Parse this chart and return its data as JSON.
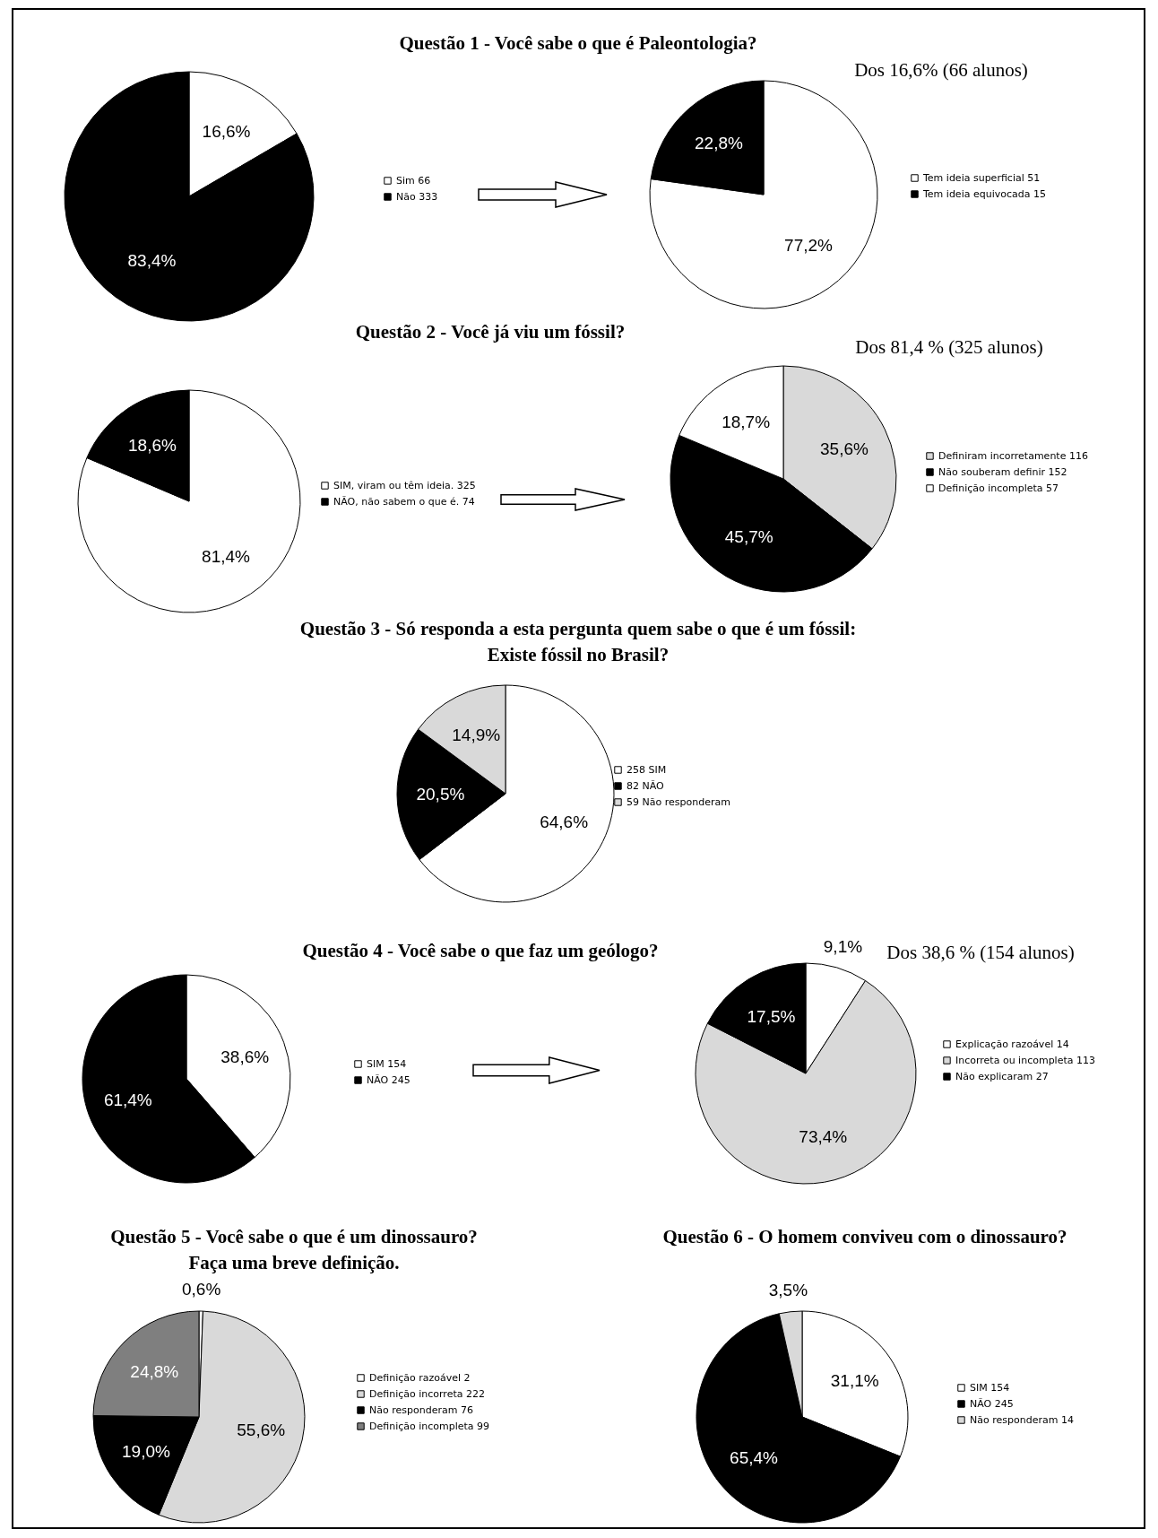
{
  "chart_data": [
    {
      "type": "pie",
      "title": "Questão 1 - Você sabe o que é Paleontologia?",
      "categories": [
        "Sim 66",
        "Não 333"
      ],
      "values": [
        16.6,
        83.4
      ],
      "value_labels": [
        "16,6%",
        "83,4%"
      ],
      "colors": [
        "#ffffff",
        "#000000"
      ],
      "legend": "right"
    },
    {
      "type": "pie",
      "title": "Dos 16,6% (66 alunos)",
      "categories": [
        "Tem ideia superficial 51",
        "Tem ideia equivocada 15"
      ],
      "values": [
        77.2,
        22.8
      ],
      "value_labels": [
        "77,2%",
        "22,8%"
      ],
      "colors": [
        "#ffffff",
        "#000000"
      ],
      "legend": "right"
    },
    {
      "type": "pie",
      "title": "Questão 2 - Você já viu um fóssil?",
      "categories": [
        "SIM, viram ou têm ideia. 325",
        "NÃO, não sabem o que é. 74"
      ],
      "values": [
        81.4,
        18.6
      ],
      "value_labels": [
        "81,4%",
        "18,6%"
      ],
      "colors": [
        "#ffffff",
        "#000000"
      ],
      "legend": "right"
    },
    {
      "type": "pie",
      "title": "Dos 81,4 % (325 alunos)",
      "categories": [
        "Definiram incorretamente 116",
        "Não souberam definir 152",
        "Definição incompleta 57"
      ],
      "values": [
        35.6,
        45.7,
        18.7
      ],
      "value_labels": [
        "35,6%",
        "45,7%",
        "18,7%"
      ],
      "colors": [
        "#d9d9d9",
        "#000000",
        "#ffffff"
      ],
      "legend": "right"
    },
    {
      "type": "pie",
      "title": "Questão 3 - Só responda a esta pergunta quem sabe o que é um fóssil:\nExiste fóssil no Brasil?",
      "categories": [
        "258 SIM",
        "82 NÃO",
        "59 Não responderam"
      ],
      "values": [
        64.6,
        20.5,
        14.9
      ],
      "value_labels": [
        "64,6%",
        "20,5%",
        "14,9%"
      ],
      "colors": [
        "#ffffff",
        "#000000",
        "#d9d9d9"
      ],
      "legend": "right"
    },
    {
      "type": "pie",
      "title": "Questão 4 - Você sabe o que faz um geólogo?",
      "categories": [
        "SIM 154",
        "NÃO 245"
      ],
      "values": [
        38.6,
        61.4
      ],
      "value_labels": [
        "38,6%",
        "61,4%"
      ],
      "colors": [
        "#ffffff",
        "#000000"
      ],
      "legend": "right"
    },
    {
      "type": "pie",
      "title": "Dos 38,6 % (154 alunos)",
      "categories": [
        "Explicação razoável 14",
        "Incorreta ou incompleta 113",
        "Não explicaram 27"
      ],
      "values": [
        9.1,
        73.4,
        17.5
      ],
      "value_labels": [
        "9,1%",
        "73,4%",
        "17,5%"
      ],
      "colors": [
        "#ffffff",
        "#d9d9d9",
        "#000000"
      ],
      "legend": "right"
    },
    {
      "type": "pie",
      "title": "Questão 5 - Você sabe o que é um dinossauro?\nFaça uma breve definição.",
      "categories": [
        "Definição razoável 2",
        "Definição incorreta 222",
        "Não responderam 76",
        "Definição incompleta 99"
      ],
      "values": [
        0.6,
        55.6,
        19.0,
        24.8
      ],
      "value_labels": [
        "0,6%",
        "55,6%",
        "19,0%",
        "24,8%"
      ],
      "colors": [
        "#ffffff",
        "#d9d9d9",
        "#000000",
        "#7f7f7f"
      ],
      "legend": "right"
    },
    {
      "type": "pie",
      "title": "Questão 6 - O homem conviveu com o dinossauro?",
      "categories": [
        "SIM 154",
        "NÃO 245",
        "Não responderam 14"
      ],
      "values": [
        31.1,
        65.4,
        3.5
      ],
      "value_labels": [
        "31,1%",
        "65,4%",
        "3,5%"
      ],
      "colors": [
        "#ffffff",
        "#000000",
        "#d9d9d9"
      ],
      "legend": "right"
    }
  ]
}
